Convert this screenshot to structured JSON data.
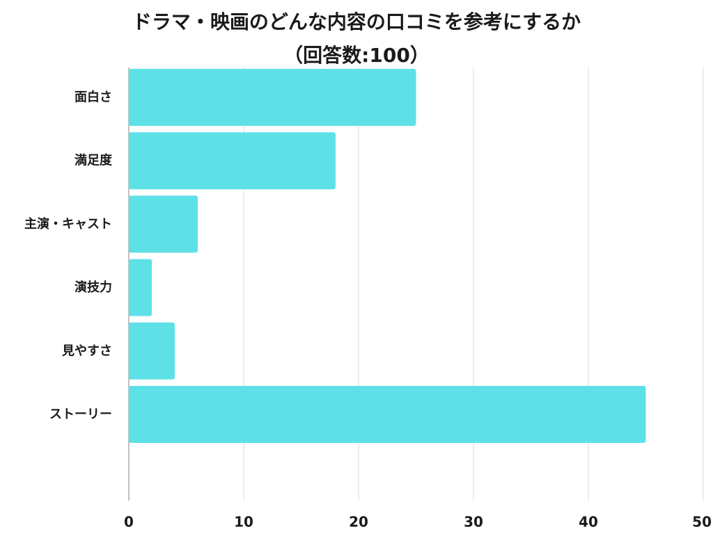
{
  "chart_data": {
    "type": "bar",
    "orientation": "horizontal",
    "title": "ドラマ・映画のどんな内容の口コミを参考にするか",
    "subtitle": "（回答数:100）",
    "categories": [
      "面白さ",
      "満足度",
      "主演・キャスト",
      "演技力",
      "見やすさ",
      "ストーリー"
    ],
    "values": [
      25,
      18,
      6,
      2,
      4,
      45
    ],
    "xlim": [
      0,
      50
    ],
    "xticks": [
      0,
      10,
      20,
      30,
      40,
      50
    ],
    "xlabel": "",
    "ylabel": "",
    "grid": true,
    "legend": "none",
    "bar_color": "#5ee1e6",
    "grid_color": "#d9d9d9"
  }
}
